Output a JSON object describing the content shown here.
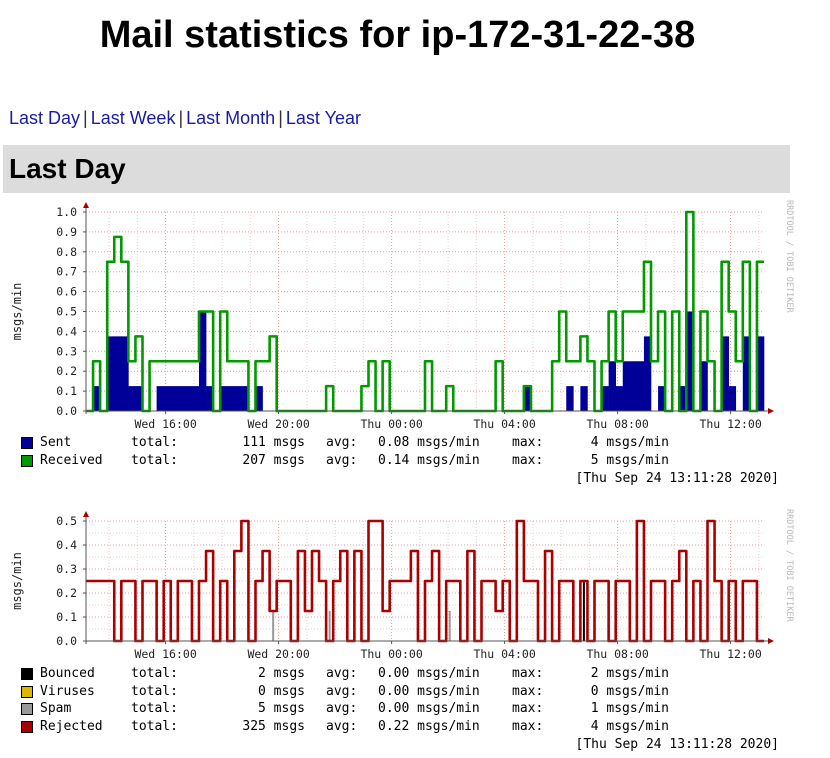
{
  "page": {
    "title": "Mail statistics for ip-172-31-22-38",
    "links": [
      "Last Day",
      "Last Week",
      "Last Month",
      "Last Year"
    ],
    "link_separator": "|",
    "section_title": "Last Day"
  },
  "chart_data": [
    {
      "type": "area",
      "ylabel": "msgs/min",
      "ylim": [
        0,
        1.0
      ],
      "yticks": [
        "0.0",
        "0.1",
        "0.2",
        "0.3",
        "0.4",
        "0.5",
        "0.6",
        "0.7",
        "0.8",
        "0.9",
        "1.0"
      ],
      "xlim": [
        "Wed 13:11",
        "Thu 13:11"
      ],
      "xtick_labels": [
        "Wed 16:00",
        "Wed 20:00",
        "Thu 00:00",
        "Thu 04:00",
        "Thu 08:00",
        "Thu 12:00"
      ],
      "grid": true,
      "watermark": "RRDTOOL / TOBI OETIKER",
      "x": [
        "Wed 13:15",
        "Wed 13:30",
        "Wed 13:45",
        "Wed 14:00",
        "Wed 14:15",
        "Wed 14:30",
        "Wed 14:45",
        "Wed 15:00",
        "Wed 15:15",
        "Wed 15:30",
        "Wed 15:45",
        "Wed 16:00",
        "Wed 16:15",
        "Wed 16:30",
        "Wed 16:45",
        "Wed 17:00",
        "Wed 17:15",
        "Wed 17:30",
        "Wed 17:45",
        "Wed 18:00",
        "Wed 18:15",
        "Wed 18:30",
        "Wed 18:45",
        "Wed 19:00",
        "Wed 19:15",
        "Wed 19:30",
        "Wed 19:45",
        "Wed 20:00",
        "Wed 20:15",
        "Wed 20:30",
        "Wed 20:45",
        "Wed 21:00",
        "Wed 21:15",
        "Wed 21:30",
        "Wed 21:45",
        "Wed 22:00",
        "Wed 22:15",
        "Wed 22:30",
        "Wed 22:45",
        "Wed 23:00",
        "Wed 23:15",
        "Wed 23:30",
        "Wed 23:45",
        "Thu 00:00",
        "Thu 00:15",
        "Thu 00:30",
        "Thu 00:45",
        "Thu 01:00",
        "Thu 01:15",
        "Thu 01:30",
        "Thu 01:45",
        "Thu 02:00",
        "Thu 02:15",
        "Thu 02:30",
        "Thu 02:45",
        "Thu 03:00",
        "Thu 03:15",
        "Thu 03:30",
        "Thu 03:45",
        "Thu 04:00",
        "Thu 04:15",
        "Thu 04:30",
        "Thu 04:45",
        "Thu 05:00",
        "Thu 05:15",
        "Thu 05:30",
        "Thu 05:45",
        "Thu 06:00",
        "Thu 06:15",
        "Thu 06:30",
        "Thu 06:45",
        "Thu 07:00",
        "Thu 07:15",
        "Thu 07:30",
        "Thu 07:45",
        "Thu 08:00",
        "Thu 08:15",
        "Thu 08:30",
        "Thu 08:45",
        "Thu 09:00",
        "Thu 09:15",
        "Thu 09:30",
        "Thu 09:45",
        "Thu 10:00",
        "Thu 10:15",
        "Thu 10:30",
        "Thu 10:45",
        "Thu 11:00",
        "Thu 11:15",
        "Thu 11:30",
        "Thu 11:45",
        "Thu 12:00",
        "Thu 12:15",
        "Thu 12:30",
        "Thu 12:45",
        "Thu 13:00"
      ],
      "series": [
        {
          "name": "Sent",
          "color": "#000099",
          "style": "area",
          "values": [
            0,
            0.125,
            0,
            0.375,
            0.375,
            0.375,
            0.125,
            0.125,
            0,
            0,
            0.125,
            0.125,
            0.125,
            0.125,
            0.125,
            0.125,
            0.5,
            0.125,
            0,
            0.125,
            0.125,
            0.125,
            0.125,
            0,
            0.125,
            0,
            0,
            0,
            0,
            0,
            0,
            0,
            0,
            0,
            0,
            0,
            0,
            0,
            0,
            0,
            0,
            0,
            0,
            0,
            0,
            0,
            0,
            0,
            0,
            0,
            0,
            0,
            0,
            0,
            0,
            0,
            0,
            0,
            0,
            0,
            0,
            0,
            0.125,
            0,
            0,
            0,
            0,
            0,
            0.125,
            0,
            0.125,
            0,
            0,
            0.125,
            0.25,
            0.125,
            0.25,
            0.25,
            0.25,
            0.375,
            0,
            0.125,
            0,
            0,
            0.125,
            0.5,
            0,
            0.25,
            0,
            0,
            0.375,
            0.125,
            0,
            0.375,
            0,
            0.375
          ]
        },
        {
          "name": "Received",
          "color": "#009900",
          "style": "line",
          "values": [
            0,
            0.25,
            0,
            0.75,
            0.875,
            0.75,
            0.25,
            0.375,
            0,
            0.25,
            0.25,
            0.25,
            0.25,
            0.25,
            0.25,
            0.25,
            0.5,
            0.5,
            0,
            0.5,
            0.25,
            0.25,
            0.25,
            0,
            0.25,
            0.25,
            0.375,
            0,
            0,
            0,
            0,
            0,
            0,
            0,
            0.125,
            0,
            0,
            0,
            0,
            0.125,
            0.25,
            0,
            0.25,
            0,
            0,
            0,
            0,
            0,
            0.25,
            0,
            0,
            0.125,
            0,
            0,
            0,
            0,
            0,
            0,
            0.25,
            0,
            0,
            0,
            0.125,
            0,
            0,
            0,
            0.25,
            0.5,
            0.25,
            0.25,
            0.375,
            0.25,
            0,
            0.25,
            0.5,
            0.25,
            0.5,
            0.5,
            0.5,
            0.75,
            0.25,
            0.5,
            0,
            0.5,
            0,
            1.0,
            0,
            0.5,
            0.25,
            0,
            0.75,
            0.5,
            0.25,
            0.75,
            0,
            0.75
          ]
        }
      ],
      "legend": [
        {
          "name": "Sent",
          "color": "#000099",
          "total_label": "total:",
          "total": "111 msgs",
          "avg_label": "avg:",
          "avg": "0.08 msgs/min",
          "max_label": "max:",
          "max": "4 msgs/min"
        },
        {
          "name": "Received",
          "color": "#009900",
          "total_label": "total:",
          "total": "207 msgs",
          "avg_label": "avg:",
          "avg": "0.14 msgs/min",
          "max_label": "max:",
          "max": "5 msgs/min"
        }
      ],
      "timestamp": "[Thu Sep 24 13:11:28 2020]"
    },
    {
      "type": "line",
      "ylabel": "msgs/min",
      "ylim": [
        0,
        0.5
      ],
      "yticks": [
        "0.0",
        "0.1",
        "0.2",
        "0.3",
        "0.4",
        "0.5"
      ],
      "xlim": [
        "Wed 13:11",
        "Thu 13:11"
      ],
      "xtick_labels": [
        "Wed 16:00",
        "Wed 20:00",
        "Thu 00:00",
        "Thu 04:00",
        "Thu 08:00",
        "Thu 12:00"
      ],
      "grid": true,
      "watermark": "RRDTOOL / TOBI OETIKER",
      "x": [
        "Wed 13:15",
        "Wed 13:30",
        "Wed 13:45",
        "Wed 14:00",
        "Wed 14:15",
        "Wed 14:30",
        "Wed 14:45",
        "Wed 15:00",
        "Wed 15:15",
        "Wed 15:30",
        "Wed 15:45",
        "Wed 16:00",
        "Wed 16:15",
        "Wed 16:30",
        "Wed 16:45",
        "Wed 17:00",
        "Wed 17:15",
        "Wed 17:30",
        "Wed 17:45",
        "Wed 18:00",
        "Wed 18:15",
        "Wed 18:30",
        "Wed 18:45",
        "Wed 19:00",
        "Wed 19:15",
        "Wed 19:30",
        "Wed 19:45",
        "Wed 20:00",
        "Wed 20:15",
        "Wed 20:30",
        "Wed 20:45",
        "Wed 21:00",
        "Wed 21:15",
        "Wed 21:30",
        "Wed 21:45",
        "Wed 22:00",
        "Wed 22:15",
        "Wed 22:30",
        "Wed 22:45",
        "Wed 23:00",
        "Wed 23:15",
        "Wed 23:30",
        "Wed 23:45",
        "Thu 00:00",
        "Thu 00:15",
        "Thu 00:30",
        "Thu 00:45",
        "Thu 01:00",
        "Thu 01:15",
        "Thu 01:30",
        "Thu 01:45",
        "Thu 02:00",
        "Thu 02:15",
        "Thu 02:30",
        "Thu 02:45",
        "Thu 03:00",
        "Thu 03:15",
        "Thu 03:30",
        "Thu 03:45",
        "Thu 04:00",
        "Thu 04:15",
        "Thu 04:30",
        "Thu 04:45",
        "Thu 05:00",
        "Thu 05:15",
        "Thu 05:30",
        "Thu 05:45",
        "Thu 06:00",
        "Thu 06:15",
        "Thu 06:30",
        "Thu 06:45",
        "Thu 07:00",
        "Thu 07:15",
        "Thu 07:30",
        "Thu 07:45",
        "Thu 08:00",
        "Thu 08:15",
        "Thu 08:30",
        "Thu 08:45",
        "Thu 09:00",
        "Thu 09:15",
        "Thu 09:30",
        "Thu 09:45",
        "Thu 10:00",
        "Thu 10:15",
        "Thu 10:30",
        "Thu 10:45",
        "Thu 11:00",
        "Thu 11:15",
        "Thu 11:30",
        "Thu 11:45",
        "Thu 12:00",
        "Thu 12:15",
        "Thu 12:30",
        "Thu 12:45",
        "Thu 13:00"
      ],
      "series": [
        {
          "name": "Bounced",
          "color": "#000000",
          "style": "bar",
          "values": [
            0,
            0,
            0,
            0,
            0,
            0,
            0,
            0,
            0,
            0,
            0,
            0,
            0,
            0,
            0,
            0,
            0,
            0,
            0,
            0,
            0,
            0,
            0,
            0,
            0,
            0,
            0,
            0,
            0,
            0,
            0,
            0,
            0,
            0,
            0,
            0,
            0,
            0,
            0,
            0,
            0,
            0,
            0,
            0,
            0,
            0,
            0,
            0,
            0,
            0,
            0,
            0,
            0,
            0,
            0,
            0,
            0,
            0,
            0,
            0,
            0,
            0,
            0,
            0,
            0,
            0,
            0,
            0,
            0,
            0,
            0.25,
            0,
            0,
            0,
            0,
            0,
            0,
            0,
            0,
            0,
            0,
            0,
            0,
            0,
            0,
            0,
            0,
            0,
            0,
            0,
            0,
            0,
            0,
            0,
            0,
            0
          ]
        },
        {
          "name": "Viruses",
          "color": "#ccaa00",
          "style": "bar",
          "values": [
            0,
            0,
            0,
            0,
            0,
            0,
            0,
            0,
            0,
            0,
            0,
            0,
            0,
            0,
            0,
            0,
            0,
            0,
            0,
            0,
            0,
            0,
            0,
            0,
            0,
            0,
            0,
            0,
            0,
            0,
            0,
            0,
            0,
            0,
            0,
            0,
            0,
            0,
            0,
            0,
            0,
            0,
            0,
            0,
            0,
            0,
            0,
            0,
            0,
            0,
            0,
            0,
            0,
            0,
            0,
            0,
            0,
            0,
            0,
            0,
            0,
            0,
            0,
            0,
            0,
            0,
            0,
            0,
            0,
            0,
            0,
            0,
            0,
            0,
            0,
            0,
            0,
            0,
            0,
            0,
            0,
            0,
            0,
            0,
            0,
            0,
            0,
            0,
            0,
            0,
            0,
            0,
            0,
            0,
            0,
            0
          ]
        },
        {
          "name": "Spam",
          "color": "#999999",
          "style": "bar",
          "values": [
            0,
            0,
            0,
            0,
            0,
            0,
            0,
            0,
            0,
            0,
            0,
            0,
            0,
            0,
            0,
            0,
            0,
            0,
            0,
            0,
            0,
            0,
            0,
            0,
            0,
            0,
            0.125,
            0,
            0,
            0,
            0,
            0,
            0,
            0,
            0.125,
            0,
            0,
            0,
            0,
            0,
            0,
            0,
            0,
            0,
            0,
            0,
            0,
            0,
            0,
            0,
            0,
            0.125,
            0,
            0,
            0,
            0,
            0,
            0,
            0,
            0,
            0,
            0,
            0,
            0,
            0,
            0,
            0,
            0,
            0,
            0,
            0,
            0,
            0,
            0,
            0,
            0,
            0,
            0,
            0,
            0,
            0,
            0,
            0,
            0,
            0,
            0,
            0,
            0,
            0,
            0,
            0,
            0,
            0,
            0,
            0,
            0
          ]
        },
        {
          "name": "Rejected",
          "color": "#aa0000",
          "style": "line",
          "values": [
            0.25,
            0.25,
            0.25,
            0.25,
            0,
            0.25,
            0.25,
            0,
            0.25,
            0.25,
            0,
            0.25,
            0,
            0.25,
            0.25,
            0,
            0.25,
            0.375,
            0,
            0.25,
            0,
            0.375,
            0.5,
            0,
            0.25,
            0.375,
            0.125,
            0.25,
            0.25,
            0,
            0.375,
            0.125,
            0.375,
            0.25,
            0,
            0.25,
            0.375,
            0,
            0.375,
            0,
            0.5,
            0.5,
            0.125,
            0.25,
            0.25,
            0.25,
            0.375,
            0,
            0.25,
            0.375,
            0,
            0.25,
            0.25,
            0,
            0.375,
            0,
            0.25,
            0.25,
            0.125,
            0.25,
            0,
            0.5,
            0.25,
            0.25,
            0,
            0.375,
            0,
            0.25,
            0.25,
            0,
            0.25,
            0,
            0.25,
            0.25,
            0,
            0.25,
            0.25,
            0,
            0.5,
            0,
            0.25,
            0.25,
            0,
            0.25,
            0.375,
            0,
            0.25,
            0,
            0.5,
            0.25,
            0,
            0.25,
            0,
            0.25,
            0.25,
            0
          ]
        }
      ],
      "legend": [
        {
          "name": "Bounced",
          "color": "#000000",
          "total_label": "total:",
          "total": "2 msgs",
          "avg_label": "avg:",
          "avg": "0.00 msgs/min",
          "max_label": "max:",
          "max": "2 msgs/min"
        },
        {
          "name": "Viruses",
          "color": "#ddb800",
          "total_label": "total:",
          "total": "0 msgs",
          "avg_label": "avg:",
          "avg": "0.00 msgs/min",
          "max_label": "max:",
          "max": "0 msgs/min"
        },
        {
          "name": "Spam",
          "color": "#999999",
          "total_label": "total:",
          "total": "5 msgs",
          "avg_label": "avg:",
          "avg": "0.00 msgs/min",
          "max_label": "max:",
          "max": "1 msgs/min"
        },
        {
          "name": "Rejected",
          "color": "#aa0000",
          "total_label": "total:",
          "total": "325 msgs",
          "avg_label": "avg:",
          "avg": "0.22 msgs/min",
          "max_label": "max:",
          "max": "4 msgs/min"
        }
      ],
      "timestamp": "[Thu Sep 24 13:11:28 2020]"
    }
  ]
}
